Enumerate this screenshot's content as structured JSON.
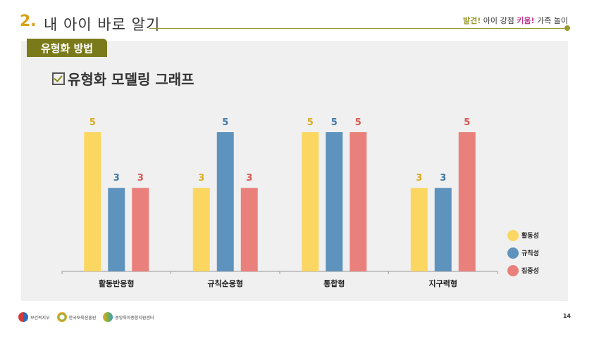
{
  "header": {
    "section_number": "2.",
    "section_title": "내 아이 바로 알기",
    "slogan_a": "발견!",
    "slogan_b": " 아이 강점 ",
    "slogan_c": "키움!",
    "slogan_d": " 가족 놀이"
  },
  "tab_label": "유형화 방법",
  "chart_title": "유형화 모델링 그래프",
  "colors": {
    "yellow": "#fbd762",
    "blue": "#5e93bd",
    "red": "#ea807b",
    "yellow_text": "#dcaa1f",
    "blue_text": "#3e77a4",
    "red_text": "#d85550"
  },
  "chart_data": {
    "type": "bar",
    "categories": [
      "활동반응형",
      "규칙순응형",
      "통합형",
      "지구력형"
    ],
    "series": [
      {
        "name": "활동성",
        "values": [
          5,
          3,
          5,
          3
        ]
      },
      {
        "name": "규칙성",
        "values": [
          3,
          5,
          5,
          3
        ]
      },
      {
        "name": "집중성",
        "values": [
          3,
          3,
          5,
          5
        ]
      }
    ],
    "ylim": [
      0,
      5
    ],
    "legend": "right"
  },
  "footer": {
    "org1": "보건복지부",
    "org2": "한국보육진흥원",
    "org3": "중앙육아종합지원센터",
    "page": "14"
  }
}
